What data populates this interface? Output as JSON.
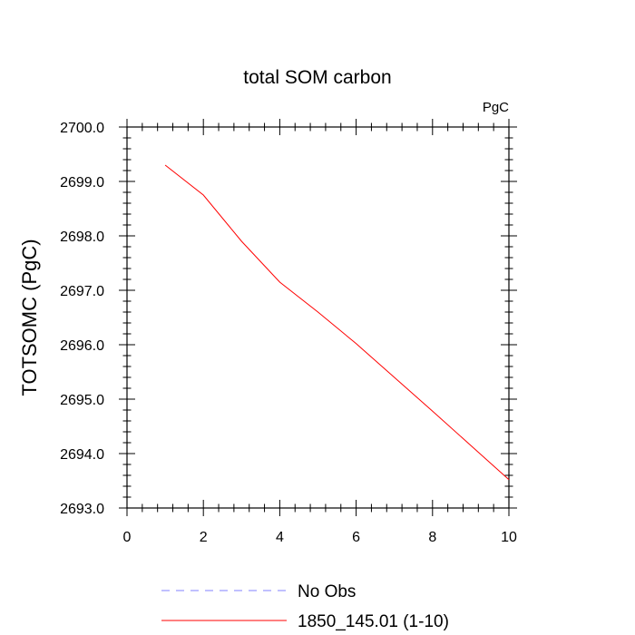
{
  "chart_data": {
    "type": "line",
    "title": "total SOM carbon",
    "units": "PgC",
    "xlabel": "",
    "ylabel": "TOTSOMC  (PgC)",
    "xlim": [
      0,
      10
    ],
    "ylim": [
      2693.0,
      2700.0
    ],
    "x_ticks": [
      0,
      2,
      4,
      6,
      8,
      10
    ],
    "x_tick_labels": [
      "0",
      "2",
      "4",
      "6",
      "8",
      "10"
    ],
    "y_ticks": [
      2693.0,
      2694.0,
      2695.0,
      2696.0,
      2697.0,
      2698.0,
      2699.0,
      2700.0
    ],
    "y_tick_labels": [
      "2693.0",
      "2694.0",
      "2695.0",
      "2696.0",
      "2697.0",
      "2698.0",
      "2699.0",
      "2700.0"
    ],
    "grid": false,
    "legend_position": "bottom",
    "series": [
      {
        "name": "No Obs",
        "color": "#8080ff",
        "style": "dashed",
        "x": [],
        "y": []
      },
      {
        "name": "1850_145.01 (1-10)",
        "color": "#ff0000",
        "style": "solid",
        "x": [
          1,
          2,
          3,
          4,
          5,
          6,
          7,
          8,
          9,
          10
        ],
        "y": [
          2699.3,
          2698.75,
          2697.9,
          2697.15,
          2696.6,
          2696.02,
          2695.4,
          2694.78,
          2694.15,
          2693.52
        ]
      }
    ]
  }
}
